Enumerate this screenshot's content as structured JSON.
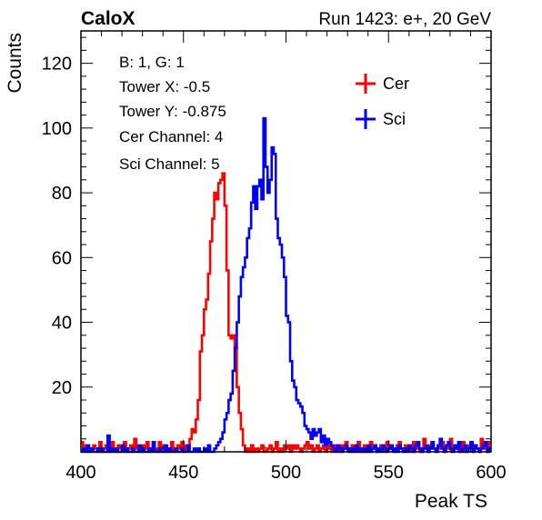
{
  "header": {
    "left_title": "CaloX",
    "right_title": "Run 1423: e+, 20 GeV"
  },
  "info_lines": [
    "B: 1, G: 1",
    "Tower X: -0.5",
    "Tower Y: -0.875",
    "Cer Channel: 4",
    "Sci Channel: 5"
  ],
  "chart_data": {
    "type": "line",
    "xlabel": "Peak TS",
    "ylabel": "Counts",
    "xlim": [
      400,
      600
    ],
    "ylim": [
      0,
      130
    ],
    "xticks": [
      400,
      450,
      500,
      550,
      600
    ],
    "yticks": [
      20,
      40,
      60,
      80,
      100,
      120
    ],
    "grid": false,
    "legend_position": "top-right",
    "colors": {
      "Cer": "#ff0000",
      "Sci": "#0000ff"
    },
    "series": [
      {
        "name": "Cer",
        "x_start": 400,
        "bin_width": 1,
        "values": [
          3,
          1,
          2,
          0,
          1,
          1,
          2,
          1,
          0,
          3,
          0,
          1,
          2,
          0,
          1,
          3,
          1,
          0,
          2,
          1,
          1,
          3,
          0,
          1,
          2,
          0,
          4,
          1,
          1,
          0,
          2,
          1,
          3,
          0,
          1,
          2,
          1,
          0,
          3,
          1,
          2,
          0,
          1,
          1,
          3,
          0,
          1,
          2,
          1,
          3,
          0,
          2,
          1,
          4,
          7,
          6,
          10,
          16,
          31,
          36,
          44,
          47,
          55,
          65,
          72,
          80,
          78,
          83,
          84,
          86,
          76,
          56,
          36,
          35,
          36,
          32,
          20,
          12,
          7,
          2,
          0,
          1,
          0,
          2,
          0,
          1,
          0,
          1,
          2,
          0,
          0,
          1,
          2,
          0,
          1,
          3,
          0,
          1,
          0,
          2,
          1,
          2,
          0,
          2,
          1,
          2,
          1,
          0,
          1,
          2,
          3,
          1,
          2,
          0,
          1,
          2,
          0,
          1,
          2,
          0,
          1,
          3,
          0,
          1,
          2,
          1,
          0,
          2,
          1,
          3,
          0,
          1,
          2,
          0,
          1,
          3,
          1,
          0,
          2,
          1,
          0,
          3,
          1,
          2,
          0,
          1,
          2,
          1,
          0,
          3,
          2,
          1,
          1,
          0,
          2,
          3,
          1,
          0,
          2,
          1,
          1,
          0,
          3,
          1,
          2,
          0,
          1,
          4,
          1,
          0,
          2,
          3,
          1,
          0,
          2,
          1,
          3,
          0,
          1,
          2,
          4,
          0,
          1,
          2,
          0,
          1,
          3,
          0,
          2,
          1,
          3,
          0,
          2,
          1,
          0,
          4,
          1,
          2,
          0,
          3
        ]
      },
      {
        "name": "Sci",
        "x_start": 400,
        "bin_width": 1,
        "values": [
          0,
          1,
          0,
          2,
          0,
          1,
          0,
          0,
          1,
          0,
          1,
          0,
          0,
          5,
          0,
          1,
          0,
          1,
          0,
          0,
          2,
          0,
          1,
          0,
          0,
          1,
          0,
          0,
          2,
          0,
          1,
          0,
          0,
          1,
          0,
          3,
          0,
          0,
          1,
          0,
          0,
          2,
          0,
          1,
          0,
          0,
          1,
          0,
          0,
          1,
          0,
          0,
          2,
          0,
          0,
          1,
          0,
          1,
          0,
          0,
          1,
          0,
          2,
          0,
          0,
          1,
          2,
          3,
          4,
          6,
          10,
          12,
          16,
          18,
          25,
          32,
          40,
          48,
          54,
          57,
          60,
          66,
          69,
          77,
          82,
          75,
          82,
          84,
          78,
          103,
          88,
          80,
          84,
          94,
          92,
          72,
          66,
          64,
          60,
          54,
          42,
          40,
          28,
          22,
          20,
          16,
          15,
          14,
          12,
          8,
          7,
          6,
          4,
          7,
          5,
          6,
          7,
          3,
          5,
          2,
          4,
          3,
          2,
          1,
          0,
          2,
          1,
          0,
          1,
          2,
          1,
          0,
          1,
          0,
          2,
          0,
          1,
          0,
          1,
          0,
          2,
          0,
          1,
          2,
          0,
          1,
          0,
          2,
          1,
          0,
          1,
          2,
          0,
          1,
          0,
          2,
          1,
          0,
          1,
          0,
          2,
          1,
          0,
          2,
          3,
          1,
          0,
          1,
          2,
          0,
          1,
          3,
          1,
          0,
          2,
          4,
          1,
          0,
          2,
          3,
          1,
          0,
          2,
          1,
          3,
          0,
          1,
          2,
          0,
          1,
          3,
          0,
          2,
          1,
          0,
          1,
          2,
          3,
          0,
          1
        ]
      }
    ]
  }
}
